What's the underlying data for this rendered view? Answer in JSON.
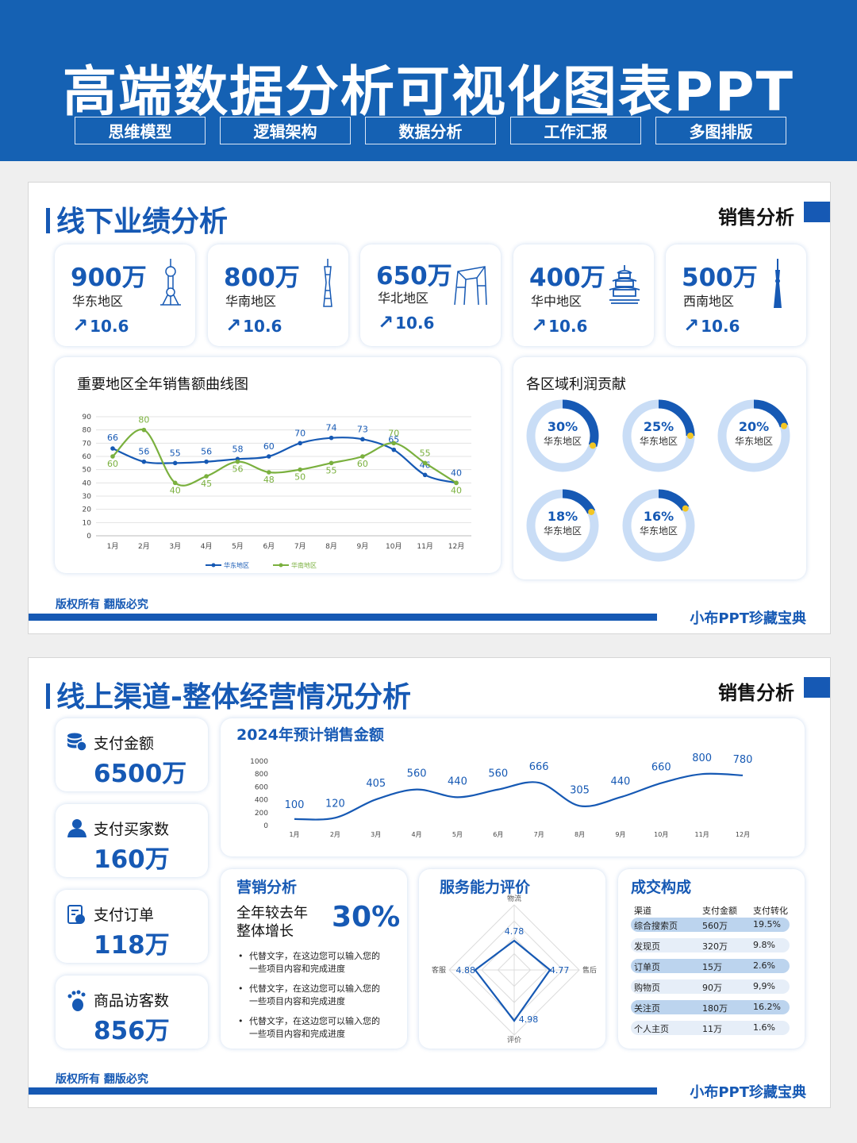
{
  "header": {
    "title": "高端数据分析可视化图表PPT",
    "tags": [
      "思维模型",
      "逻辑架构",
      "数据分析",
      "工作汇报",
      "多图排版"
    ]
  },
  "panel1": {
    "title": "线下业绩分析",
    "tag": "销售分析",
    "kpis": [
      {
        "value": "900万",
        "region": "华东地区",
        "growth": "10.6",
        "icon": "pearl-tower-icon"
      },
      {
        "value": "800万",
        "region": "华南地区",
        "growth": "10.6",
        "icon": "canton-tower-icon"
      },
      {
        "value": "650万",
        "region": "华北地区",
        "growth": "10.6",
        "icon": "gate-tower-icon"
      },
      {
        "value": "400万",
        "region": "华中地区",
        "growth": "10.6",
        "icon": "pagoda-icon"
      },
      {
        "value": "500万",
        "region": "西南地区",
        "growth": "10.6",
        "icon": "tv-tower-icon"
      }
    ],
    "line_chart_title": "重要地区全年销售额曲线图",
    "donut_title": "各区域利润贡献",
    "donuts": [
      {
        "pct": "30%",
        "region": "华东地区",
        "value": 0.3
      },
      {
        "pct": "25%",
        "region": "华东地区",
        "value": 0.25
      },
      {
        "pct": "20%",
        "region": "华东地区",
        "value": 0.2
      },
      {
        "pct": "18%",
        "region": "华东地区",
        "value": 0.18
      },
      {
        "pct": "16%",
        "region": "华东地区",
        "value": 0.16
      }
    ],
    "copyright": "版权所有 翻版必究",
    "brand": "小布PPT珍藏宝典"
  },
  "panel2": {
    "title": "线上渠道-整体经营情况分析",
    "tag": "销售分析",
    "stats": [
      {
        "label": "支付金额",
        "value": "6500万",
        "icon": "coins-icon"
      },
      {
        "label": "支付买家数",
        "value": "160万",
        "icon": "user-icon"
      },
      {
        "label": "支付订单",
        "value": "118万",
        "icon": "order-icon"
      },
      {
        "label": "商品访客数",
        "value": "856万",
        "icon": "footprint-icon"
      }
    ],
    "sales_chart_title": "2024年预计销售金额",
    "marketing": {
      "title": "营销分析",
      "growth_label_1": "全年较去年",
      "growth_label_2": "整体增长",
      "growth_value": "30%",
      "bullets": [
        {
          "line1": "代替文字，在这边您可以输入您的",
          "line2": "一些项目内容和完成进度"
        },
        {
          "line1": "代替文字，在这边您可以输入您的",
          "line2": "一些项目内容和完成进度"
        },
        {
          "line1": "代替文字，在这边您可以输入您的",
          "line2": "一些项目内容和完成进度"
        }
      ]
    },
    "service_title": "服务能力评价",
    "deal": {
      "title": "成交构成",
      "headers": [
        "渠道",
        "支付金额",
        "支付转化率"
      ],
      "rows": [
        [
          "综合搜索页",
          "560万",
          "19.5%"
        ],
        [
          "发现页",
          "320万",
          "9.8%"
        ],
        [
          "订单页",
          "15万",
          "2.6%"
        ],
        [
          "购物页",
          "90万",
          "9,9%"
        ],
        [
          "关注页",
          "180万",
          "16.2%"
        ],
        [
          "个人主页",
          "11万",
          "1.6%"
        ]
      ]
    },
    "copyright": "版权所有 翻版必究",
    "brand": "小布PPT珍藏宝典"
  },
  "colors": {
    "primary": "#1659b4",
    "green": "#7ab03e",
    "light": "#c9ddf6",
    "accent": "#f3c623"
  },
  "chart_data": [
    {
      "type": "line",
      "title": "重要地区全年销售额曲线图",
      "categories": [
        "1月",
        "2月",
        "3月",
        "4月",
        "5月",
        "6月",
        "7月",
        "8月",
        "9月",
        "10月",
        "11月",
        "12月"
      ],
      "series": [
        {
          "name": "华东地区",
          "values": [
            66,
            56,
            55,
            56,
            58,
            60,
            70,
            74,
            73,
            65,
            46,
            40
          ]
        },
        {
          "name": "华南地区",
          "values": [
            60,
            80,
            40,
            45,
            56,
            48,
            50,
            55,
            60,
            70,
            55,
            40
          ]
        }
      ],
      "yticks": [
        0,
        10,
        20,
        30,
        40,
        50,
        60,
        70,
        80,
        90
      ],
      "ylim": [
        0,
        90
      ],
      "grid": true,
      "legend": "bottom"
    },
    {
      "type": "line",
      "title": "2024年预计销售金额",
      "categories": [
        "1月",
        "2月",
        "3月",
        "4月",
        "5月",
        "6月",
        "7月",
        "8月",
        "9月",
        "10月",
        "11月",
        "12月"
      ],
      "series": [
        {
          "values": [
            100,
            120,
            405,
            560,
            440,
            560,
            666,
            305,
            440,
            660,
            800,
            780
          ]
        }
      ],
      "yticks": [
        0,
        200,
        400,
        600,
        800,
        1000
      ],
      "ylim": [
        0,
        1000
      ]
    },
    {
      "type": "radar",
      "title": "服务能力评价",
      "axes": [
        "物流",
        "售后",
        "评价",
        "客服"
      ],
      "values": [
        4.78,
        4.77,
        4.98,
        4.88
      ],
      "max": 5
    },
    {
      "type": "pie",
      "title": "各区域利润贡献",
      "categories": [
        "华东地区",
        "华东地区",
        "华东地区",
        "华东地区",
        "华东地区"
      ],
      "values": [
        30,
        25,
        20,
        18,
        16
      ]
    }
  ]
}
